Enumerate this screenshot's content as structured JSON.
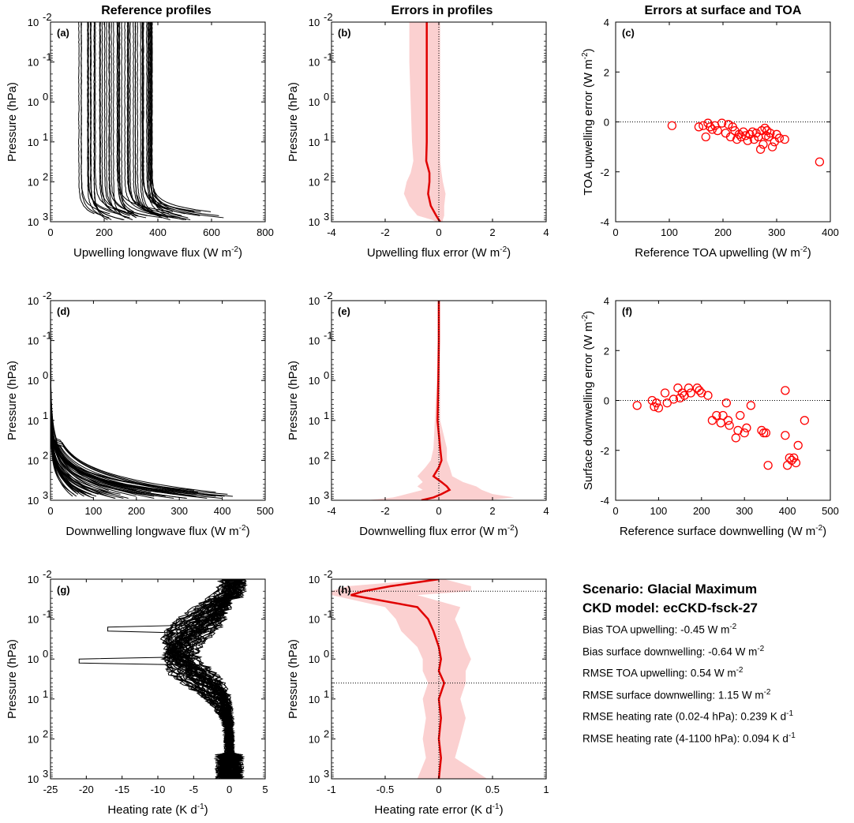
{
  "column_titles": [
    "Reference profiles",
    "Errors in profiles",
    "Errors at surface and TOA"
  ],
  "info": {
    "scenario": "Scenario: Glacial Maximum",
    "ckd_model": "CKD model: ecCKD-fsck-27",
    "lines": [
      {
        "label": "Bias TOA upwelling: -0.45 W m",
        "sup": "-2"
      },
      {
        "label": "Bias surface downwelling: -0.64 W m",
        "sup": "-2"
      },
      {
        "label": "RMSE TOA upwelling: 0.54 W m",
        "sup": "-2"
      },
      {
        "label": "RMSE surface downwelling: 1.15 W m",
        "sup": "-2"
      },
      {
        "label": "RMSE heating rate (0.02-4 hPa):  0.239 K d",
        "sup": "-1"
      },
      {
        "label": "RMSE heating rate (4-1100 hPa):  0.094 K d",
        "sup": "-1"
      }
    ]
  },
  "chart_data": [
    {
      "id": "a",
      "panel_label": "(a)",
      "type": "line",
      "xlabel": "Upwelling longwave flux",
      "xunit": "(W m",
      "xunit_sup": "-2",
      "xunit_end": ")",
      "ylabel": "Pressure (hPa)",
      "yscale": "log",
      "yreverse": true,
      "xlim": [
        0,
        800
      ],
      "ylim": [
        0.01,
        1000
      ],
      "xticks": [
        0,
        200,
        400,
        600,
        800
      ],
      "description": "Ensemble of ~50 upwelling flux profiles; TOA values ~105–380 W m-2, nearly constant above 100 hPa, increasing toward surface (up to ~620 W m-2 at 1000 hPa)"
    },
    {
      "id": "b",
      "panel_label": "(b)",
      "type": "line",
      "xlabel": "Upwelling flux error",
      "xunit": "(W m",
      "xunit_sup": "-2",
      "xunit_end": ")",
      "ylabel": "Pressure (hPa)",
      "yscale": "log",
      "yreverse": true,
      "xlim": [
        -4,
        4
      ],
      "ylim": [
        0.01,
        1000
      ],
      "xticks": [
        -4,
        -2,
        0,
        2,
        4
      ],
      "series": [
        {
          "pressure": [
            0.01,
            0.1,
            1,
            10,
            30,
            60,
            100,
            200,
            400,
            700,
            900,
            1000
          ],
          "mean": [
            -0.45,
            -0.45,
            -0.45,
            -0.45,
            -0.47,
            -0.35,
            -0.35,
            -0.4,
            -0.3,
            -0.1,
            0.0,
            0.05
          ],
          "lower": [
            -1.1,
            -1.1,
            -1.05,
            -1.0,
            -0.95,
            -1.05,
            -1.2,
            -1.3,
            -1.1,
            -0.8,
            -0.25,
            -0.1
          ],
          "upper": [
            0.05,
            0.05,
            0.05,
            0.05,
            0.05,
            0.1,
            0.15,
            0.25,
            0.2,
            0.2,
            0.15,
            0.15
          ]
        }
      ]
    },
    {
      "id": "c",
      "panel_label": "(c)",
      "type": "scatter",
      "xlabel": "Reference TOA upwelling",
      "xunit": "(W m",
      "xunit_sup": "-2",
      "xunit_end": ")",
      "ylabel": "TOA upwelling error",
      "yunit": "(W m",
      "yunit_sup": "-2",
      "yunit_end": ")",
      "xlim": [
        0,
        400
      ],
      "ylim": [
        -4,
        4
      ],
      "xticks": [
        0,
        100,
        200,
        300,
        400
      ],
      "yticks": [
        -4,
        -2,
        0,
        2,
        4
      ],
      "x": [
        105,
        155,
        163,
        168,
        172,
        176,
        180,
        185,
        190,
        198,
        205,
        210,
        214,
        218,
        222,
        226,
        230,
        234,
        238,
        242,
        246,
        250,
        255,
        258,
        262,
        266,
        270,
        272,
        275,
        278,
        280,
        282,
        285,
        288,
        292,
        296,
        300,
        305,
        315,
        380
      ],
      "y": [
        -0.15,
        -0.2,
        -0.15,
        -0.6,
        -0.05,
        -0.2,
        -0.3,
        -0.15,
        -0.35,
        -0.05,
        -0.45,
        -0.1,
        -0.6,
        -0.2,
        -0.35,
        -0.7,
        -0.5,
        -0.6,
        -0.4,
        -0.55,
        -0.75,
        -0.5,
        -0.4,
        -0.7,
        -0.45,
        -0.6,
        -1.1,
        -0.35,
        -0.9,
        -0.25,
        -0.55,
        -0.35,
        -0.6,
        -0.45,
        -1.0,
        -0.8,
        -0.5,
        -0.65,
        -0.7,
        -1.6
      ],
      "zero_line": true
    },
    {
      "id": "d",
      "panel_label": "(d)",
      "type": "line",
      "xlabel": "Downwelling longwave flux",
      "xunit": "(W m",
      "xunit_sup": "-2",
      "xunit_end": ")",
      "ylabel": "Pressure (hPa)",
      "yscale": "log",
      "yreverse": true,
      "xlim": [
        0,
        500
      ],
      "ylim": [
        0.01,
        1000
      ],
      "xticks": [
        0,
        100,
        200,
        300,
        400,
        500
      ],
      "description": "Ensemble of ~50 downwelling flux profiles; near zero at TOA, growing to ~50–440 W m-2 at the surface"
    },
    {
      "id": "e",
      "panel_label": "(e)",
      "type": "line",
      "xlabel": "Downwelling flux error",
      "xunit": "(W m",
      "xunit_sup": "-2",
      "xunit_end": ")",
      "ylabel": "Pressure (hPa)",
      "yscale": "log",
      "yreverse": true,
      "xlim": [
        -4,
        4
      ],
      "ylim": [
        0.01,
        1000
      ],
      "xticks": [
        -4,
        -2,
        0,
        2,
        4
      ],
      "series": [
        {
          "pressure": [
            0.01,
            0.1,
            1,
            10,
            50,
            100,
            150,
            250,
            350,
            450,
            550,
            700,
            850,
            1000
          ],
          "mean": [
            0.0,
            0.0,
            -0.02,
            -0.05,
            0.05,
            0.1,
            0.0,
            -0.2,
            0.1,
            0.3,
            0.4,
            0.1,
            -0.2,
            -0.65
          ],
          "lower": [
            -0.05,
            -0.05,
            -0.08,
            -0.15,
            -0.2,
            -0.3,
            -0.5,
            -0.8,
            -0.6,
            -0.8,
            -0.6,
            -1.2,
            -1.7,
            -2.7
          ],
          "upper": [
            0.05,
            0.05,
            0.05,
            0.05,
            0.3,
            0.3,
            0.4,
            0.5,
            0.9,
            1.4,
            1.6,
            2.0,
            2.8,
            1.8
          ]
        }
      ]
    },
    {
      "id": "f",
      "panel_label": "(f)",
      "type": "scatter",
      "xlabel": "Reference surface downwelling",
      "xunit": "(W m",
      "xunit_sup": "-2",
      "xunit_end": ")",
      "ylabel": "Surface downwelling error",
      "yunit": "(W m",
      "yunit_sup": "-2",
      "yunit_end": ")",
      "xlim": [
        0,
        500
      ],
      "ylim": [
        -4,
        4
      ],
      "xticks": [
        0,
        100,
        200,
        300,
        400,
        500
      ],
      "yticks": [
        -4,
        -2,
        0,
        2,
        4
      ],
      "x": [
        50,
        85,
        90,
        95,
        100,
        115,
        120,
        135,
        145,
        150,
        155,
        160,
        170,
        175,
        190,
        195,
        200,
        215,
        225,
        235,
        245,
        250,
        258,
        262,
        265,
        280,
        285,
        290,
        300,
        305,
        315,
        340,
        345,
        350,
        355,
        395,
        395,
        400,
        405,
        410,
        415,
        420,
        425,
        440
      ],
      "y": [
        -0.2,
        0.0,
        -0.25,
        -0.1,
        -0.3,
        0.3,
        -0.1,
        0.05,
        0.5,
        0.1,
        0.3,
        0.2,
        0.5,
        0.3,
        0.5,
        0.4,
        0.3,
        0.2,
        -0.8,
        -0.6,
        -0.9,
        -0.6,
        -0.1,
        -0.8,
        -1.0,
        -1.5,
        -1.2,
        -0.6,
        -1.3,
        -1.1,
        -0.2,
        -1.2,
        -1.3,
        -1.3,
        -2.6,
        0.4,
        -1.4,
        -2.6,
        -2.3,
        -2.4,
        -2.3,
        -2.5,
        -1.8,
        -0.8
      ],
      "zero_line": true
    },
    {
      "id": "g",
      "panel_label": "(g)",
      "type": "line",
      "xlabel": "Heating rate",
      "xunit": "(K d",
      "xunit_sup": "-1",
      "xunit_end": ")",
      "ylabel": "Pressure (hPa)",
      "yscale": "log",
      "yreverse": true,
      "xlim": [
        -25,
        5
      ],
      "ylim": [
        0.01,
        1000
      ],
      "xticks": [
        -25,
        -20,
        -15,
        -10,
        -5,
        0,
        5
      ],
      "description": "Ensemble of heating-rate profiles; near 0 to +3 K/d at 0.01 hPa, cooling minimum ~-7 K/d (outliers to -21 K/d) near 1 hPa, back to ~0 below 100 hPa"
    },
    {
      "id": "h",
      "panel_label": "(h)",
      "type": "line",
      "xlabel": "Heating rate error",
      "xunit": "(K d",
      "xunit_sup": "-1",
      "xunit_end": ")",
      "ylabel": "Pressure (hPa)",
      "yscale": "log",
      "yreverse": true,
      "xlim": [
        -1,
        1
      ],
      "ylim": [
        0.01,
        1000
      ],
      "xticks": [
        -1,
        -0.5,
        0,
        0.5,
        1
      ],
      "hlines": [
        0.02,
        4
      ],
      "series": [
        {
          "pressure": [
            0.01,
            0.015,
            0.02,
            0.025,
            0.05,
            0.1,
            0.2,
            0.5,
            1,
            2,
            4,
            10,
            30,
            100,
            300,
            1000
          ],
          "mean": [
            0.0,
            -0.45,
            -0.7,
            -0.82,
            -0.2,
            -0.1,
            -0.05,
            0.0,
            0.02,
            0.0,
            0.05,
            0.0,
            0.02,
            0.0,
            0.02,
            0.0
          ],
          "lower": [
            -0.05,
            -0.85,
            -1.0,
            -1.0,
            -0.5,
            -0.4,
            -0.35,
            -0.2,
            -0.15,
            -0.15,
            -0.1,
            -0.15,
            -0.12,
            -0.15,
            -0.12,
            -0.2
          ],
          "upper": [
            0.05,
            0.3,
            0.3,
            -0.2,
            0.2,
            0.15,
            0.2,
            0.25,
            0.3,
            0.25,
            0.25,
            0.2,
            0.25,
            0.2,
            0.15,
            0.45
          ]
        }
      ]
    }
  ]
}
